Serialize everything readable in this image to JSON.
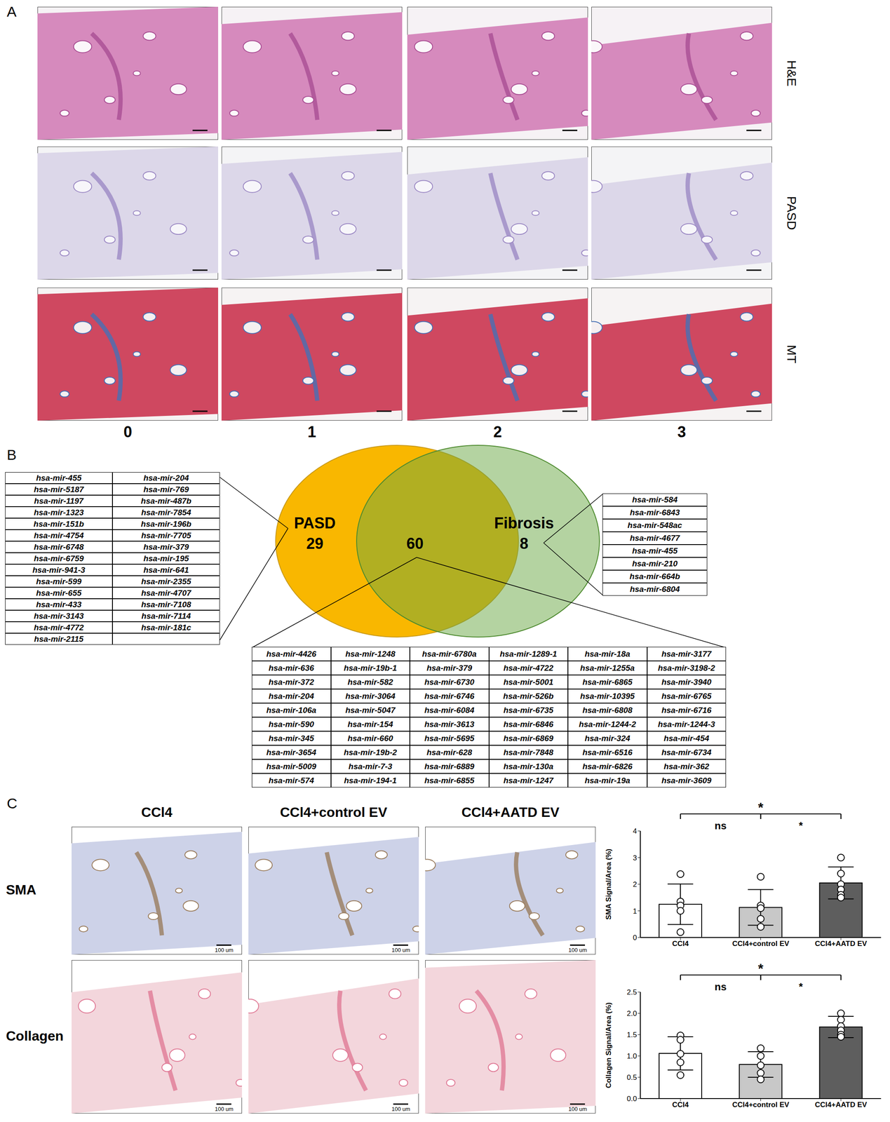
{
  "panels": {
    "A": {
      "label": "A",
      "row_labels": [
        "H&E",
        "PASD",
        "MT"
      ],
      "column_labels": [
        0,
        1,
        2,
        3
      ]
    },
    "B": {
      "label": "B",
      "venn": {
        "left": {
          "label": "PASD",
          "count": 29,
          "color": "#f9b700",
          "columns": [
            [
              "hsa-mir-455",
              "hsa-mir-5187",
              "hsa-mir-1197",
              "hsa-mir-1323",
              "hsa-mir-151b",
              "hsa-mir-4754",
              "hsa-mir-6748",
              "hsa-mir-6759",
              "hsa-mir-941-3",
              "hsa-mir-599",
              "hsa-mir-655",
              "hsa-mir-433",
              "hsa-mir-3143",
              "hsa-mir-4772",
              "hsa-mir-2115"
            ],
            [
              "hsa-mir-204",
              "hsa-mir-769",
              "hsa-mir-487b",
              "hsa-mir-7854",
              "hsa-mir-196b",
              "hsa-mir-7705",
              "hsa-mir-379",
              "hsa-mir-195",
              "hsa-mir-641",
              "hsa-mir-2355",
              "hsa-mir-4707",
              "hsa-mir-7108",
              "hsa-mir-7114",
              "hsa-mir-181c"
            ]
          ]
        },
        "right": {
          "label": "Fibrosis",
          "count": 8,
          "color": "#6aa843",
          "items": [
            "hsa-mir-584",
            "hsa-mir-6843",
            "hsa-mir-548ac",
            "hsa-mir-4677",
            "hsa-mir-455",
            "hsa-mir-210",
            "hsa-mir-664b",
            "hsa-mir-6804"
          ]
        },
        "overlap": {
          "count": 60,
          "rows": [
            [
              "hsa-mir-4426",
              "hsa-mir-1248",
              "hsa-mir-6780a",
              "hsa-mir-1289-1",
              "hsa-mir-18a",
              "hsa-mir-3177"
            ],
            [
              "hsa-mir-636",
              "hsa-mir-19b-1",
              "hsa-mir-379",
              "hsa-mir-4722",
              "hsa-mir-1255a",
              "hsa-mir-3198-2"
            ],
            [
              "hsa-mir-372",
              "hsa-mir-582",
              "hsa-mir-6730",
              "hsa-mir-5001",
              "hsa-mir-6865",
              "hsa-mir-3940"
            ],
            [
              "hsa-mir-204",
              "hsa-mir-3064",
              "hsa-mir-6746",
              "hsa-mir-526b",
              "hsa-mir-10395",
              "hsa-mir-6765"
            ],
            [
              "hsa-mir-106a",
              "hsa-mir-5047",
              "hsa-mir-6084",
              "hsa-mir-6735",
              "hsa-mir-6808",
              "hsa-mir-6716"
            ],
            [
              "hsa-mir-590",
              "hsa-mir-154",
              "hsa-mir-3613",
              "hsa-mir-6846",
              "hsa-mir-1244-2",
              "hsa-mir-1244-3"
            ],
            [
              "hsa-mir-345",
              "hsa-mir-660",
              "hsa-mir-5695",
              "hsa-mir-6869",
              "hsa-mir-324",
              "hsa-mir-454"
            ],
            [
              "hsa-mir-3654",
              "hsa-mir-19b-2",
              "hsa-mir-628",
              "hsa-mir-7848",
              "hsa-mir-6516",
              "hsa-mir-6734"
            ],
            [
              "hsa-mir-5009",
              "hsa-mir-7-3",
              "hsa-mir-6889",
              "hsa-mir-130a",
              "hsa-mir-6826",
              "hsa-mir-362"
            ],
            [
              "hsa-mir-574",
              "hsa-mir-194-1",
              "hsa-mir-6855",
              "hsa-mir-1247",
              "hsa-mir-19a",
              "hsa-mir-3609"
            ]
          ]
        }
      }
    },
    "C": {
      "label": "C",
      "column_titles": [
        "CCl4",
        "CCl4+control EV",
        "CCl4+AATD EV"
      ],
      "row_labels": [
        "SMA",
        "Collagen"
      ],
      "scale_bar_label": "100 um"
    }
  },
  "chart_data": [
    {
      "type": "bar",
      "y_label": "SMA Signal/Area (%)",
      "categories": [
        "CCl4",
        "CCl4+control EV",
        "CCl4+AATD EV"
      ],
      "values": [
        1.25,
        1.13,
        2.05
      ],
      "error": [
        0.76,
        0.67,
        0.6
      ],
      "points": [
        [
          2.38,
          1.35,
          1.2,
          1.0,
          0.2
        ],
        [
          2.28,
          1.2,
          1.1,
          0.7,
          0.4
        ],
        [
          3.0,
          2.4,
          2.0,
          1.8,
          1.6,
          1.5
        ]
      ],
      "colors": [
        "#ffffff",
        "#c8c8c8",
        "#5e5e5e"
      ],
      "ylim": [
        0,
        4
      ],
      "yticks": [
        0,
        1,
        2,
        3,
        4
      ],
      "annotations": [
        {
          "between": [
            0,
            2
          ],
          "text": "*"
        },
        {
          "between": [
            0,
            1
          ],
          "text": "ns"
        },
        {
          "between": [
            1,
            2
          ],
          "text": "*"
        }
      ]
    },
    {
      "type": "bar",
      "y_label": "Collagen Signal/Area (%)",
      "categories": [
        "CCl4",
        "CCl4+control EV",
        "CCl4+AATD EV"
      ],
      "values": [
        1.06,
        0.8,
        1.68
      ],
      "error": [
        0.39,
        0.3,
        0.25
      ],
      "points": [
        [
          1.48,
          1.38,
          1.05,
          0.85,
          0.55
        ],
        [
          1.18,
          1.0,
          0.78,
          0.6,
          0.45
        ],
        [
          2.0,
          1.85,
          1.7,
          1.6,
          1.5,
          1.45
        ]
      ],
      "colors": [
        "#ffffff",
        "#c8c8c8",
        "#5e5e5e"
      ],
      "ylim": [
        0,
        2.5
      ],
      "yticks": [
        {
          "value": 0,
          "label": "0.0"
        },
        0.5,
        {
          "value": 1,
          "label": "1.0"
        },
        1.5,
        {
          "value": 2,
          "label": "2.0"
        },
        2.5
      ],
      "annotations": [
        {
          "between": [
            0,
            2
          ],
          "text": "*"
        },
        {
          "between": [
            0,
            1
          ],
          "text": "ns"
        },
        {
          "between": [
            1,
            2
          ],
          "text": "*"
        }
      ]
    }
  ]
}
